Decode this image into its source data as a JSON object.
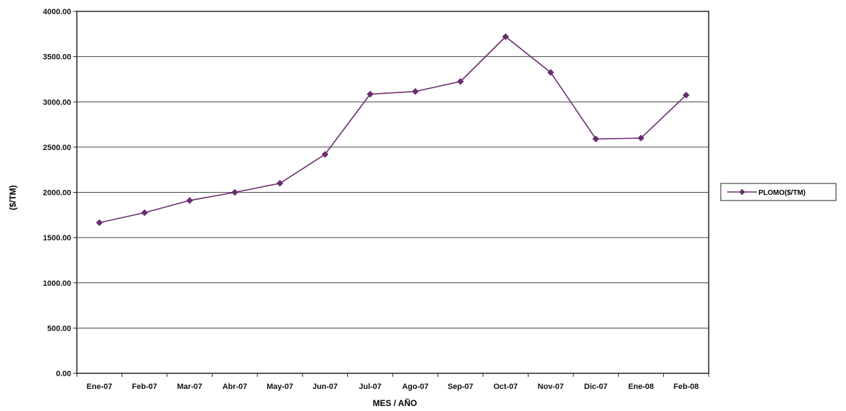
{
  "chart_data": {
    "type": "line",
    "categories": [
      "Ene-07",
      "Feb-07",
      "Mar-07",
      "Abr-07",
      "May-07",
      "Jun-07",
      "Jul-07",
      "Ago-07",
      "Sep-07",
      "Oct-07",
      "Nov-07",
      "Dic-07",
      "Ene-08",
      "Feb-08"
    ],
    "series": [
      {
        "name": "PLOMO($/TM)",
        "color": "#6a2c70",
        "values": [
          1665,
          1775,
          1910,
          2000,
          2100,
          2420,
          3085,
          3115,
          3225,
          3720,
          3325,
          2590,
          2600,
          3075
        ]
      }
    ],
    "ylabel": "($/TM)",
    "xlabel": "MES / AÑO",
    "ylim": [
      0,
      4000
    ],
    "yticks": [
      "0.00",
      "500.00",
      "1000.00",
      "1500.00",
      "2000.00",
      "2500.00",
      "3000.00",
      "3500.00",
      "4000.00"
    ],
    "grid": true,
    "legend_position": "right"
  }
}
